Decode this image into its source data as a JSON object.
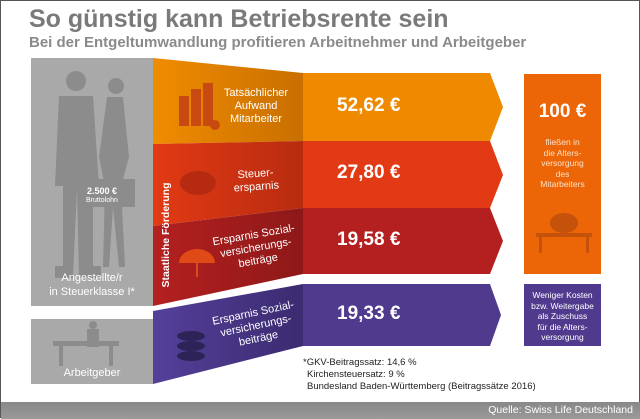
{
  "header": {
    "title": "So günstig kann Betriebsrente sein",
    "subtitle": "Bei der Entgeltumwandlung profitieren Arbeitnehmer und Arbeitgeber"
  },
  "employee": {
    "salary": "2.500 €",
    "salary_label": "Bruttolohn",
    "label_line1": "Angestellte/r",
    "label_line2": "in Steuerklasse I*"
  },
  "employer": {
    "label": "Arbeitgeber"
  },
  "state_support": "Staatliche Förderung",
  "rows": [
    {
      "label": [
        "Tatsächlicher",
        "Aufwand",
        "Mitarbeiter"
      ],
      "amount": "52,62 €",
      "color": "#ef8a00",
      "icon": "coin-stack-icon"
    },
    {
      "label": [
        "Steuer-",
        "ersparnis"
      ],
      "amount": "27,80 €",
      "color": "#e23a14",
      "icon": "piggy-bank-icon"
    },
    {
      "label": [
        "Ersparnis Sozial-",
        "versicherungs-",
        "beiträge"
      ],
      "amount": "19,58 €",
      "color": "#b42020",
      "icon": "umbrella-icon"
    },
    {
      "label": [
        "Ersparnis Sozial-",
        "versicherungs-",
        "beiträge"
      ],
      "amount": "19,33 €",
      "color": "#4f3a8e",
      "icon": "coins-icon"
    }
  ],
  "result_box": {
    "amount": "100 €",
    "text": [
      "fließen in",
      "die Alters-",
      "versorgung",
      "des",
      "Mitarbeiters"
    ],
    "color": "#ec6608",
    "icon": "piggy-bench-icon"
  },
  "employer_box": {
    "text": [
      "Weniger Kosten",
      "bzw. Weitergabe",
      "als Zuschuss",
      "für die Alters-",
      "versorgung"
    ],
    "color": "#4f3a8e"
  },
  "footnote": [
    "*GKV-Beitragssatz: 14,6 %",
    "Kirchensteuersatz: 9 %",
    "Bundesland Baden-Württemberg (Beitragssätze 2016)"
  ],
  "source": "Quelle: Swiss Life Deutschland"
}
